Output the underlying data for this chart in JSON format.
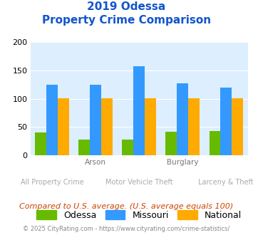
{
  "title_line1": "2019 Odessa",
  "title_line2": "Property Crime Comparison",
  "categories": [
    "All Property Crime",
    "Arson",
    "Motor Vehicle Theft",
    "Burglary",
    "Larceny & Theft"
  ],
  "top_labels": [
    "",
    "Arson",
    "",
    "Burglary",
    ""
  ],
  "bottom_labels": [
    "All Property Crime",
    "",
    "Motor Vehicle Theft",
    "",
    "Larceny & Theft"
  ],
  "odessa": [
    40,
    27,
    27,
    41,
    43
  ],
  "missouri": [
    125,
    125,
    157,
    127,
    120
  ],
  "national": [
    101,
    101,
    101,
    101,
    101
  ],
  "odessa_color": "#66bb00",
  "missouri_color": "#3399ff",
  "national_color": "#ffaa00",
  "bg_color": "#ddeeff",
  "title_color": "#1155cc",
  "ylim": [
    0,
    200
  ],
  "yticks": [
    0,
    50,
    100,
    150,
    200
  ],
  "footnote": "Compared to U.S. average. (U.S. average equals 100)",
  "copyright": "© 2025 CityRating.com - https://www.cityrating.com/crime-statistics/",
  "footnote_color": "#cc4400",
  "copyright_color": "#888888",
  "legend_labels": [
    "Odessa",
    "Missouri",
    "National"
  ]
}
